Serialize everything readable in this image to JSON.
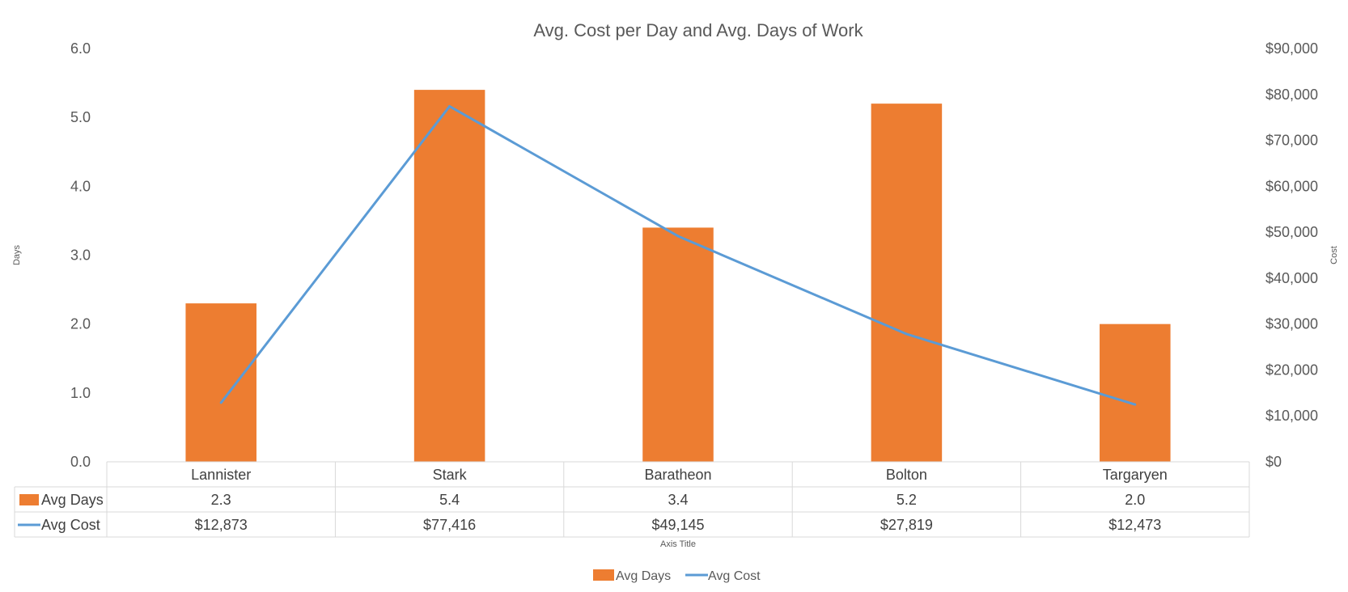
{
  "chart_data": {
    "type": "bar",
    "title": "Avg. Cost per Day and Avg. Days of Work",
    "categories": [
      "Lannister",
      "Stark",
      "Baratheon",
      "Bolton",
      "Targaryen"
    ],
    "xlabel": "Axis Title",
    "ylabel_left": "Days",
    "ylabel_right": "Cost",
    "ylim_left": [
      0,
      6
    ],
    "ylim_right": [
      0,
      90000
    ],
    "yticks_left": [
      "0.0",
      "1.0",
      "2.0",
      "3.0",
      "4.0",
      "5.0",
      "6.0"
    ],
    "yticks_right": [
      "$0",
      "$10,000",
      "$20,000",
      "$30,000",
      "$40,000",
      "$50,000",
      "$60,000",
      "$70,000",
      "$80,000",
      "$90,000"
    ],
    "gridlines": false,
    "legend_position": "bottom",
    "data_table": true,
    "series": [
      {
        "name": "Avg Days",
        "type": "bar",
        "axis": "left",
        "color": "#ED7D31",
        "values": [
          2.3,
          5.4,
          3.4,
          5.2,
          2.0
        ],
        "labels": [
          "2.3",
          "5.4",
          "3.4",
          "5.2",
          "2.0"
        ]
      },
      {
        "name": "Avg Cost",
        "type": "line",
        "axis": "right",
        "color": "#5B9BD5",
        "values": [
          12873,
          77416,
          49145,
          27819,
          12473
        ],
        "labels": [
          "$12,873",
          "$77,416",
          "$49,145",
          "$27,819",
          "$12,473"
        ]
      }
    ]
  }
}
